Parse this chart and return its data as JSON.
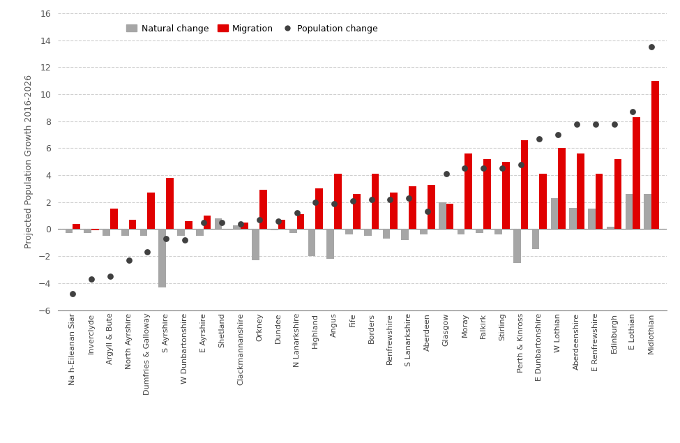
{
  "categories": [
    "Na h-Eileanan Siar",
    "Inverclyde",
    "Argyll & Bute",
    "North Ayrshire",
    "Dumfries & Galloway",
    "S Ayrshire",
    "W Dunbartonshire",
    "E Ayrshire",
    "Shetland",
    "Clackmannanshire",
    "Orkney",
    "Dundee",
    "N Lanarkshire",
    "Highland",
    "Angus",
    "Fife",
    "Borders",
    "Renfrewshire",
    "S Lanarkshire",
    "Aberdeen",
    "Glasgow",
    "Moray",
    "Falkirk",
    "Stirling",
    "Perth & Kinross",
    "E Dunbartonshire",
    "W Lothian",
    "Aberdeenshire",
    "E Renfrewshire",
    "Edinburgh",
    "E Lothian",
    "Midlothian"
  ],
  "natural_change": [
    -0.3,
    -0.3,
    -0.5,
    -0.5,
    -0.5,
    -4.3,
    -0.5,
    -0.5,
    0.8,
    0.3,
    -2.3,
    -0.1,
    -0.3,
    -2.0,
    -2.2,
    -0.4,
    -0.5,
    -0.7,
    -0.8,
    -0.4,
    2.0,
    -0.4,
    -0.3,
    -0.4,
    -2.5,
    -1.5,
    2.3,
    1.6,
    1.5,
    0.2,
    2.6,
    2.6
  ],
  "migration": [
    0.4,
    -0.1,
    1.5,
    0.7,
    2.7,
    3.8,
    0.6,
    1.0,
    0.0,
    0.5,
    2.9,
    0.7,
    1.1,
    3.0,
    4.1,
    2.6,
    4.1,
    2.7,
    3.2,
    3.3,
    1.9,
    5.6,
    5.2,
    5.0,
    6.6,
    4.1,
    6.0,
    5.6,
    4.1,
    5.2,
    8.3,
    11.0
  ],
  "population_change": [
    -4.8,
    -3.7,
    -3.5,
    -2.3,
    -1.7,
    -0.7,
    -0.8,
    0.5,
    0.5,
    0.4,
    0.7,
    0.6,
    1.2,
    2.0,
    1.9,
    2.1,
    2.2,
    2.2,
    2.3,
    1.3,
    4.1,
    4.5,
    4.5,
    4.5,
    4.8,
    6.7,
    7.0,
    7.8,
    7.8,
    7.8,
    8.7,
    13.5
  ],
  "natural_color": "#a6a6a6",
  "migration_color": "#e00000",
  "population_color": "#404040",
  "ylabel": "Projected Population Growth 2016-2026",
  "ylim": [
    -6,
    16
  ],
  "yticks": [
    -6,
    -4,
    -2,
    0,
    2,
    4,
    6,
    8,
    10,
    12,
    14,
    16
  ],
  "bar_width": 0.4,
  "legend_labels": [
    "Natural change",
    "Migration",
    "Population change"
  ],
  "background_color": "#ffffff",
  "grid_color": "#d0d0d0"
}
